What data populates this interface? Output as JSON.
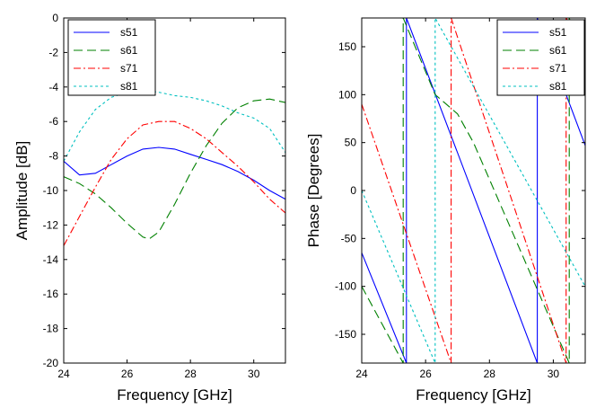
{
  "chart_data": [
    {
      "type": "line",
      "xlabel": "Frequency [GHz]",
      "ylabel": "Amplitude [dB]",
      "xlim": [
        24,
        31
      ],
      "ylim": [
        -20,
        0
      ],
      "xticks": [
        24,
        26,
        28,
        30
      ],
      "xtick_labels": [
        "24",
        "26",
        "28",
        "30"
      ],
      "yticks": [
        0,
        -2,
        -4,
        -6,
        -8,
        -10,
        -12,
        -14,
        -16,
        -18,
        -20
      ],
      "ytick_labels": [
        "0",
        "-2",
        "-4",
        "-6",
        "-8",
        "-10",
        "-12",
        "-14",
        "-16",
        "-18",
        "-20"
      ],
      "grid": false,
      "legend_position": "top-left",
      "series": [
        {
          "name": "s51",
          "color": "#0000ff",
          "style": "solid",
          "x": [
            24,
            24.5,
            25,
            25.5,
            26,
            26.5,
            27,
            27.5,
            28,
            28.5,
            29,
            29.5,
            30,
            30.5,
            31
          ],
          "y": [
            -8.3,
            -9.1,
            -9.0,
            -8.5,
            -8.0,
            -7.6,
            -7.5,
            -7.6,
            -7.9,
            -8.2,
            -8.5,
            -8.9,
            -9.4,
            -10.0,
            -10.5
          ]
        },
        {
          "name": "s61",
          "color": "#008000",
          "style": "dashed",
          "x": [
            24,
            24.5,
            25,
            25.5,
            26,
            26.5,
            26.7,
            27,
            27.5,
            28,
            28.5,
            29,
            29.5,
            30,
            30.5,
            31
          ],
          "y": [
            -9.2,
            -9.6,
            -10.2,
            -11.0,
            -11.9,
            -12.7,
            -12.8,
            -12.4,
            -10.8,
            -9.0,
            -7.4,
            -6.1,
            -5.2,
            -4.8,
            -4.7,
            -4.9
          ]
        },
        {
          "name": "s71",
          "color": "#ff0000",
          "style": "dashdot",
          "x": [
            24,
            24.5,
            25,
            25.5,
            26,
            26.5,
            27,
            27.5,
            28,
            28.5,
            29,
            29.5,
            30,
            30.5,
            31
          ],
          "y": [
            -13.2,
            -11.5,
            -9.8,
            -8.2,
            -7.0,
            -6.2,
            -6.0,
            -6.0,
            -6.4,
            -7.0,
            -7.8,
            -8.6,
            -9.5,
            -10.5,
            -11.3
          ]
        },
        {
          "name": "s81",
          "color": "#00c0c0",
          "style": "dotted",
          "x": [
            24,
            24.5,
            25,
            25.5,
            26,
            26.5,
            27,
            27.5,
            28,
            28.5,
            29,
            29.5,
            30,
            30.5,
            31
          ],
          "y": [
            -8.3,
            -6.6,
            -5.3,
            -4.6,
            -4.3,
            -4.2,
            -4.3,
            -4.5,
            -4.6,
            -4.8,
            -5.1,
            -5.5,
            -5.8,
            -6.4,
            -7.8
          ]
        }
      ]
    },
    {
      "type": "line",
      "xlabel": "Frequency [GHz]",
      "ylabel": "Phase [Degrees]",
      "xlim": [
        24,
        31
      ],
      "ylim": [
        -180,
        180
      ],
      "xticks": [
        24,
        26,
        28,
        30
      ],
      "xtick_labels": [
        "24",
        "26",
        "28",
        "30"
      ],
      "yticks": [
        150,
        100,
        50,
        0,
        -50,
        -100,
        -150
      ],
      "ytick_labels": [
        "150",
        "100",
        "50",
        "0",
        "-50",
        "-100",
        "-150"
      ],
      "grid": false,
      "legend_position": "top-right",
      "series": [
        {
          "name": "s51",
          "color": "#0000ff",
          "style": "solid",
          "x": [
            24,
            25.4,
            25.4,
            29.5,
            29.5,
            31
          ],
          "y": [
            -65,
            -180,
            180,
            -180,
            180,
            47
          ]
        },
        {
          "name": "s61",
          "color": "#008000",
          "style": "dashed",
          "x": [
            24,
            25.3,
            25.3,
            26.3,
            27,
            27.5,
            30.5,
            30.5,
            31
          ],
          "y": [
            -100,
            -180,
            180,
            100,
            80,
            50,
            -180,
            180,
            130
          ]
        },
        {
          "name": "s71",
          "color": "#ff0000",
          "style": "dashdot",
          "x": [
            24,
            26.8,
            26.8,
            30.4,
            30.4,
            31
          ],
          "y": [
            90,
            -180,
            180,
            -180,
            180,
            150
          ]
        },
        {
          "name": "s81",
          "color": "#00c0c0",
          "style": "dotted",
          "x": [
            24,
            26.3,
            26.3,
            31
          ],
          "y": [
            0,
            -180,
            180,
            -100
          ]
        }
      ]
    }
  ]
}
